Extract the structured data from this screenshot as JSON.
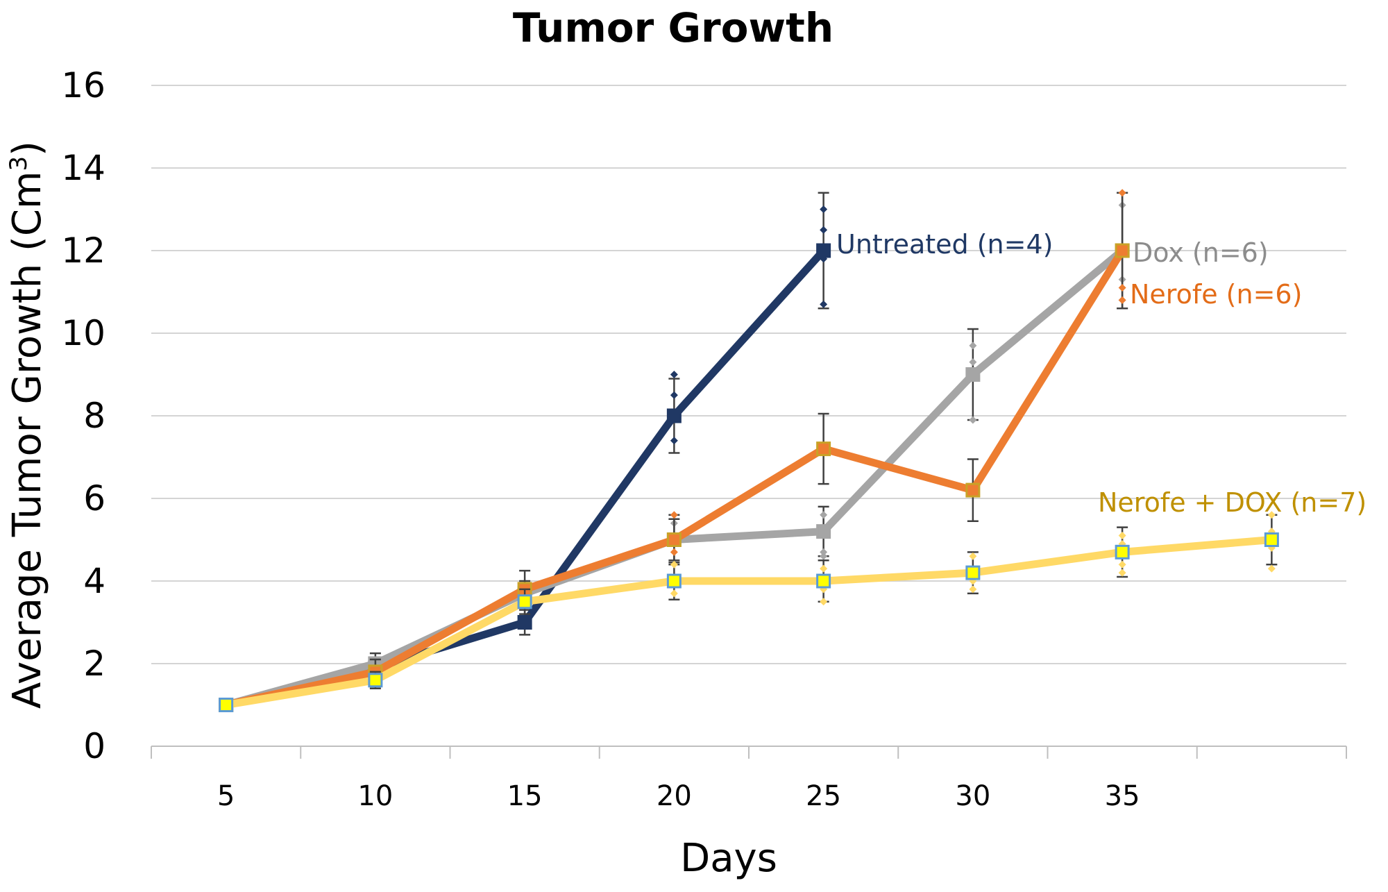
{
  "chart_data": {
    "type": "line",
    "title": "Tumor Growth",
    "xlabel": "Days",
    "ylabel_main": "Average Tumor Growth (Cm",
    "ylabel_sup": "3",
    "ylabel_close": ")",
    "x_tick_labels": [
      "5",
      "10",
      "15",
      "20",
      "25",
      "30",
      "35"
    ],
    "y_ticks": [
      0,
      2,
      4,
      6,
      8,
      10,
      12,
      14,
      16
    ],
    "ylim": [
      0,
      16
    ],
    "x_categories": 8,
    "grid": true,
    "legend": "inline labels next to series",
    "series": [
      {
        "name": "Untreated (n=4)",
        "color": "#203864",
        "label_color": "#1f3864",
        "marker_fill": "#203864",
        "marker_stroke": "#203864",
        "x": [
          5,
          10,
          15,
          20,
          25
        ],
        "y": [
          1.0,
          1.9,
          3.0,
          8.0,
          12.0
        ],
        "err": [
          0,
          0.2,
          0.3,
          0.9,
          1.4
        ],
        "scatter": [
          [],
          [],
          [],
          [
            9.0,
            8.5,
            7.4
          ],
          [
            13.0,
            12.5,
            11.8,
            10.7
          ]
        ]
      },
      {
        "name": "Dox (n=6)",
        "color": "#a5a5a5",
        "label_color": "#8c8c8c",
        "marker_fill": "#a5a5a5",
        "marker_stroke": "#a5a5a5",
        "x": [
          5,
          10,
          15,
          20,
          25,
          30,
          35
        ],
        "y": [
          1.0,
          2.0,
          3.7,
          5.0,
          5.2,
          9.0,
          12.0
        ],
        "err": [
          0,
          0.25,
          0.3,
          0.5,
          0.6,
          1.1,
          1.4
        ],
        "scatter": [
          [],
          [],
          [],
          [
            5.4,
            5.0
          ],
          [
            5.6,
            4.7,
            4.6
          ],
          [
            9.7,
            9.3,
            7.9
          ],
          [
            13.1,
            11.3,
            10.8
          ]
        ]
      },
      {
        "name": "Nerofe (n=6)",
        "color": "#ed7d31",
        "label_color": "#e36c18",
        "marker_fill": "#ed7d31",
        "marker_stroke": "#c9a227",
        "x": [
          5,
          10,
          15,
          20,
          25,
          30,
          35
        ],
        "y": [
          1.0,
          1.8,
          3.8,
          5.0,
          7.2,
          6.2,
          12.0
        ],
        "err": [
          0,
          0.3,
          0.45,
          0.6,
          0.85,
          0.75,
          1.4
        ],
        "scatter": [
          [],
          [],
          [],
          [
            5.6,
            4.7
          ],
          [],
          [],
          [
            13.4,
            11.1,
            10.8
          ]
        ]
      },
      {
        "name": "Nerofe + DOX (n=7)",
        "color": "#ffd966",
        "label_color": "#bf9000",
        "marker_fill": "#ffff00",
        "marker_stroke": "#5b9bd5",
        "x": [
          5,
          10,
          15,
          20,
          25,
          30,
          35,
          40
        ],
        "y": [
          1.0,
          1.6,
          3.5,
          4.0,
          4.0,
          4.2,
          4.7,
          5.0
        ],
        "err": [
          0,
          0.2,
          0.3,
          0.45,
          0.5,
          0.5,
          0.6,
          0.6
        ],
        "scatter": [
          [],
          [],
          [],
          [
            4.4,
            3.7
          ],
          [
            4.3,
            3.8,
            3.5
          ],
          [
            4.6,
            4.0,
            3.8
          ],
          [
            5.1,
            4.9,
            4.4,
            4.2
          ],
          [
            5.6,
            5.2,
            4.8,
            4.3
          ]
        ]
      }
    ]
  }
}
